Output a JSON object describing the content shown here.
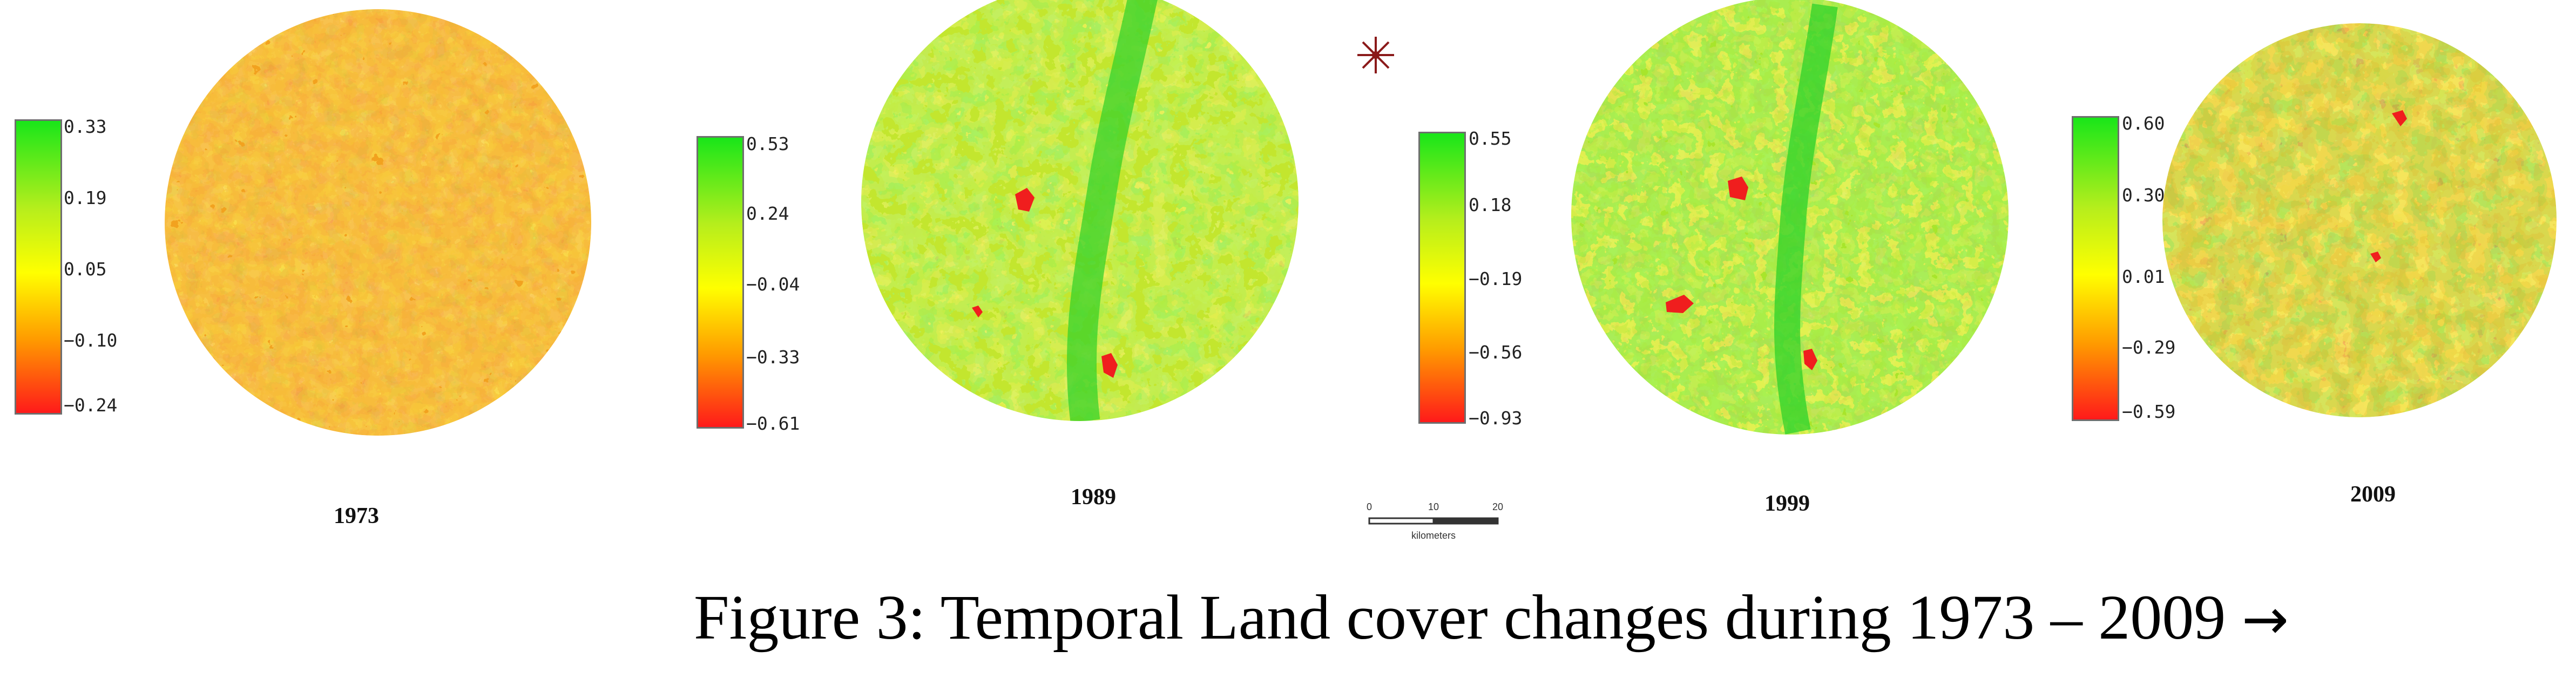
{
  "caption": {
    "text": "Figure 3: Temporal Land cover changes during 1973 – 2009",
    "arrow": "→"
  },
  "panels": [
    {
      "year": "1973",
      "legend_ticks": [
        "0.33",
        "0.19",
        "0.05",
        "−0.10",
        "−0.24"
      ],
      "dominant_color": "#f2a21f"
    },
    {
      "year": "1989",
      "legend_ticks": [
        "0.53",
        "0.24",
        "−0.04",
        "−0.33",
        "−0.61"
      ],
      "dominant_color": "#c3e62e"
    },
    {
      "year": "1999",
      "legend_ticks": [
        "0.55",
        "0.18",
        "−0.19",
        "−0.56",
        "−0.93"
      ],
      "dominant_color": "#a8e52b"
    },
    {
      "year": "2009",
      "legend_ticks": [
        "0.60",
        "0.30",
        "0.01",
        "−0.29",
        "−0.59"
      ],
      "dominant_color": "#e0b42a"
    }
  ],
  "scale_bar": {
    "labels": [
      "0",
      "10",
      "20"
    ],
    "unit": "kilometers"
  },
  "north_arrow": {
    "icon": "north-arrow-icon",
    "color": "#8b1a1a"
  }
}
